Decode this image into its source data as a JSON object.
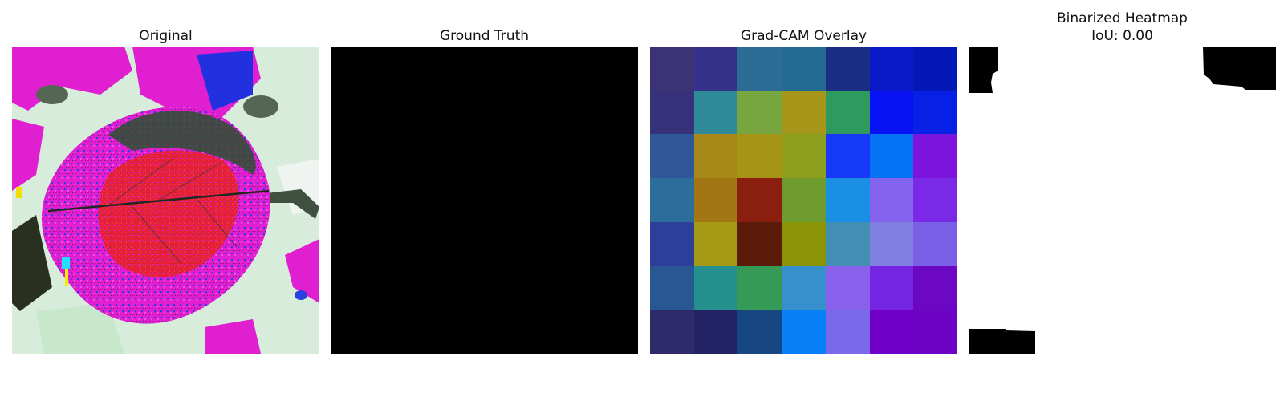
{
  "panels": [
    {
      "title": "Original"
    },
    {
      "title": "Ground Truth"
    },
    {
      "title": "Grad-CAM Overlay"
    },
    {
      "title": "Binarized Heatmap",
      "subtitle": "IoU: 0.00"
    }
  ],
  "gradcam_colors": [
    [
      "#3a3477",
      "#35308a",
      "#2d6b97",
      "#246b94",
      "#1b2d84",
      "#0b1ac8",
      "#0518b5"
    ],
    [
      "#363178",
      "#2f8a9a",
      "#78a63e",
      "#a6961a",
      "#2e9a5e",
      "#0612f4",
      "#0620e6"
    ],
    [
      "#2f579a",
      "#a9881a",
      "#a69416",
      "#8d9e1c",
      "#1638f7",
      "#0572f5",
      "#7c14dd"
    ],
    [
      "#2d6d9a",
      "#a37614",
      "#8a1f10",
      "#6e9b2d",
      "#1a8fe4",
      "#8464ef",
      "#7a2ae6"
    ],
    [
      "#2e3f99",
      "#a59a14",
      "#5b1b0a",
      "#8a9405",
      "#428fb4",
      "#8080e0",
      "#7a5fe7"
    ],
    [
      "#285794",
      "#23908e",
      "#349a55",
      "#3790cc",
      "#8860ec",
      "#7426e3",
      "#6c08c3"
    ],
    [
      "#2f2a6a",
      "#232366",
      "#164781",
      "#0880f5",
      "#7a6aea",
      "#7000c8",
      "#6d04c5"
    ]
  ]
}
